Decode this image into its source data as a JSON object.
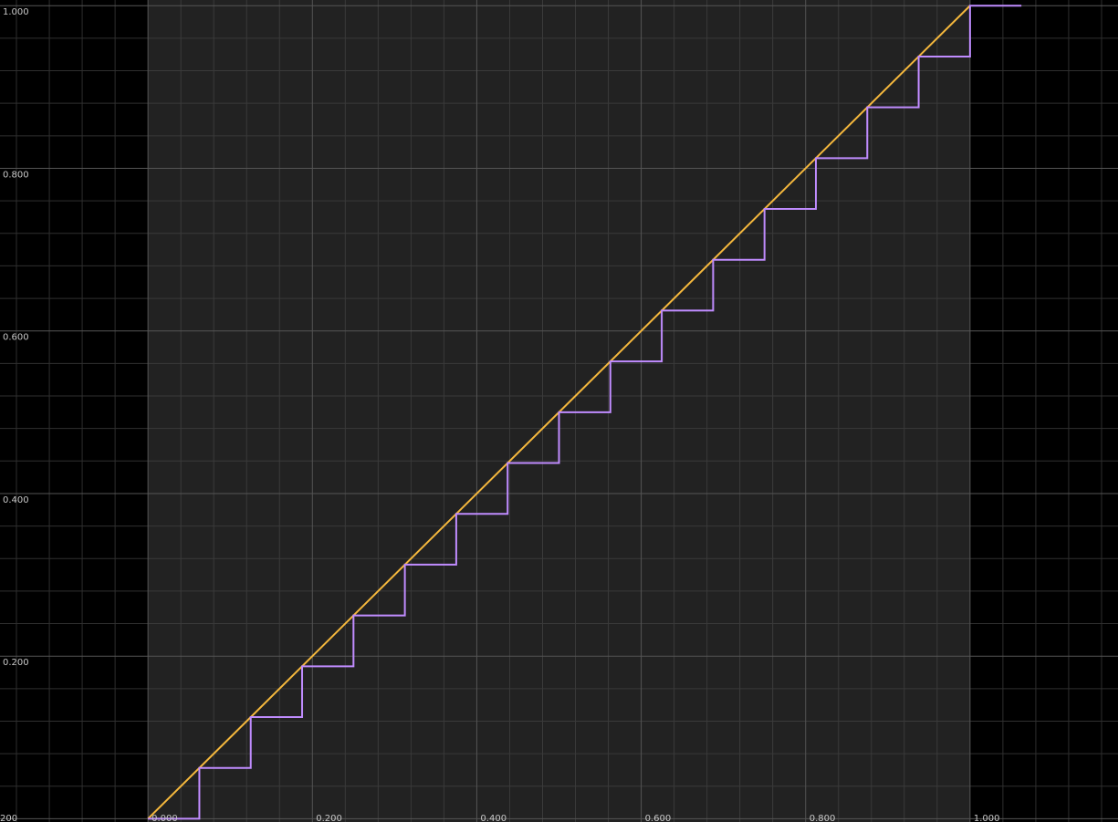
{
  "chart_data": {
    "type": "line",
    "title": "",
    "xlabel": "",
    "ylabel": "",
    "xlim": [
      -0.18,
      1.18
    ],
    "ylim": [
      -0.004,
      1.007
    ],
    "grid": true,
    "legend": "none",
    "x_ticks": [
      "0.000",
      "0.200",
      "0.400",
      "0.600",
      "0.800",
      "1.000"
    ],
    "x_tick_values": [
      0.0,
      0.2,
      0.4,
      0.6,
      0.8,
      1.0
    ],
    "x_edge_label": "200",
    "y_ticks": [
      "0.200",
      "0.400",
      "0.600",
      "0.800",
      "1.000"
    ],
    "y_tick_values": [
      0.2,
      0.4,
      0.6,
      0.8,
      1.0
    ],
    "domain": [
      0.0,
      1.0
    ],
    "series": [
      {
        "color": "#f5b83d",
        "style": "linear",
        "x": [
          0.0,
          1.0
        ],
        "y": [
          0.0,
          1.0
        ]
      },
      {
        "color": "#c08cff",
        "style": "step",
        "x": [
          0.0,
          0.0625,
          0.125,
          0.1875,
          0.25,
          0.3125,
          0.375,
          0.4375,
          0.5,
          0.5625,
          0.625,
          0.6875,
          0.75,
          0.8125,
          0.875,
          0.9375,
          1.0,
          1.0625
        ],
        "y": [
          0.0,
          0.0625,
          0.125,
          0.1875,
          0.25,
          0.3125,
          0.375,
          0.4375,
          0.5,
          0.5625,
          0.625,
          0.6875,
          0.75,
          0.8125,
          0.875,
          0.9375,
          1.0,
          1.0
        ]
      }
    ]
  },
  "colors": {
    "background": "#000000",
    "domain_background": "#222222",
    "grid_minor": "#2f2f2f",
    "grid_minor_domain": "#3a3a3a",
    "grid_major": "#555555",
    "tick_text": "#c8c8c8"
  }
}
